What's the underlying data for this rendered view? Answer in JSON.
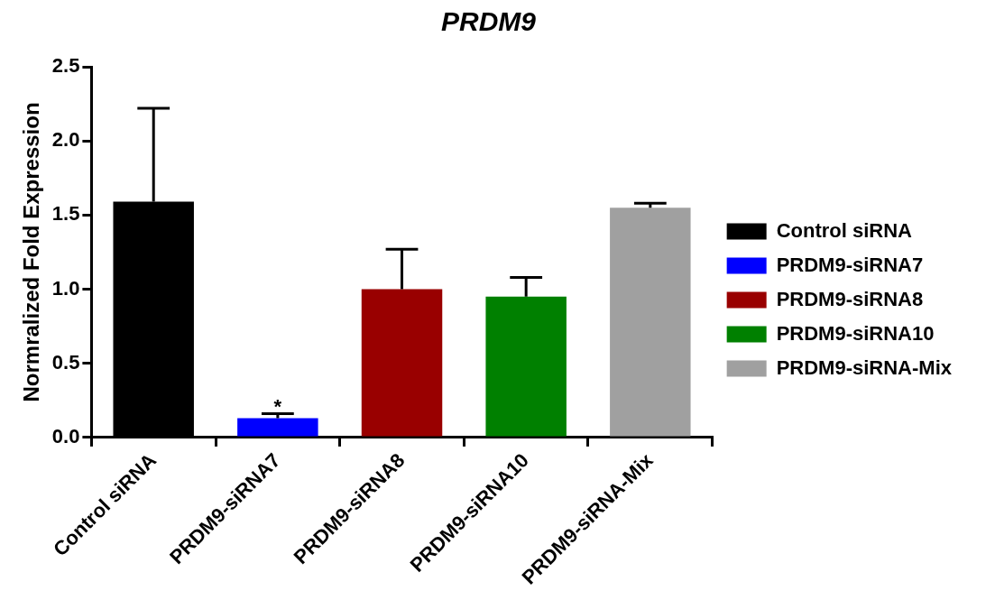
{
  "chart_data": {
    "type": "bar",
    "title": "PRDM9",
    "ylabel": "Normralized Fold Expression",
    "categories": [
      "Control siRNA",
      "PRDM9-siRNA7",
      "PRDM9-siRNA8",
      "PRDM9-siRNA10",
      "PRDM9-siRNA-Mix"
    ],
    "series": [
      {
        "name": "Control siRNA",
        "color": "#000000",
        "values": [
          1.59,
          null,
          null,
          null,
          null
        ],
        "errors": [
          [
            1.59,
            2.22
          ],
          null,
          null,
          null,
          null
        ]
      },
      {
        "name": "PRDM9-siRNA7",
        "color": "#0000ff",
        "values": [
          null,
          0.13,
          null,
          null,
          null
        ],
        "errors": [
          null,
          [
            0.13,
            0.16
          ],
          null,
          null,
          null
        ]
      },
      {
        "name": "PRDM9-siRNA8",
        "color": "#990000",
        "values": [
          null,
          null,
          1.0,
          null,
          null
        ],
        "errors": [
          null,
          null,
          [
            1.0,
            1.27
          ],
          null,
          null
        ]
      },
      {
        "name": "PRDM9-siRNA10",
        "color": "#008000",
        "values": [
          null,
          null,
          null,
          0.95,
          null
        ],
        "errors": [
          null,
          null,
          null,
          [
            0.95,
            1.08
          ],
          null
        ]
      },
      {
        "name": "PRDM9-siRNA-Mix",
        "color": "#a0a0a0",
        "values": [
          null,
          null,
          null,
          null,
          1.55
        ],
        "errors": [
          null,
          null,
          null,
          null,
          [
            1.55,
            1.58
          ]
        ]
      }
    ],
    "ylim": [
      0,
      2.5
    ],
    "yticks": [
      {
        "value": 0,
        "label": "0.0"
      },
      0.5,
      {
        "value": 1,
        "label": "1.0"
      },
      1.5,
      {
        "value": 2,
        "label": "2.0"
      },
      2.5
    ],
    "annotations": [
      {
        "text": "*",
        "x": "PRDM9-siRNA7",
        "y": 0.16
      }
    ],
    "grid": false,
    "legend": "right"
  }
}
